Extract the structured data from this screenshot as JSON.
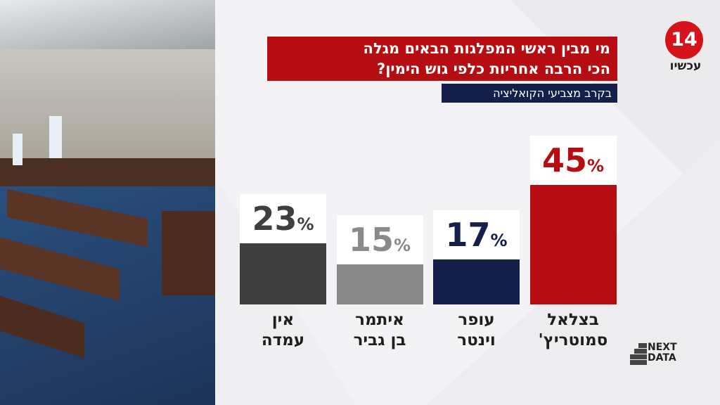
{
  "chart_data": {
    "type": "bar",
    "title": "מי מבין ראשי המפלגות הבאים מגלה\nהכי הרבה אחריות כלפי גוש הימין?",
    "subtitle": "בקרב מצביעי הקואליציה",
    "categories": [
      "בצלאל\nסמוטריץ'",
      "עופר\nוינטר",
      "איתמר\nבן גביר",
      "אין\nעמדה"
    ],
    "values": [
      45,
      17,
      15,
      23
    ],
    "value_unit": "%",
    "colors": [
      "#b50d12",
      "#14204a",
      "#8a8a8a",
      "#3f3f3f"
    ]
  },
  "branding": {
    "channel_number": "14",
    "channel_word": "עכשיו",
    "source": "NEXT\nDATA"
  }
}
